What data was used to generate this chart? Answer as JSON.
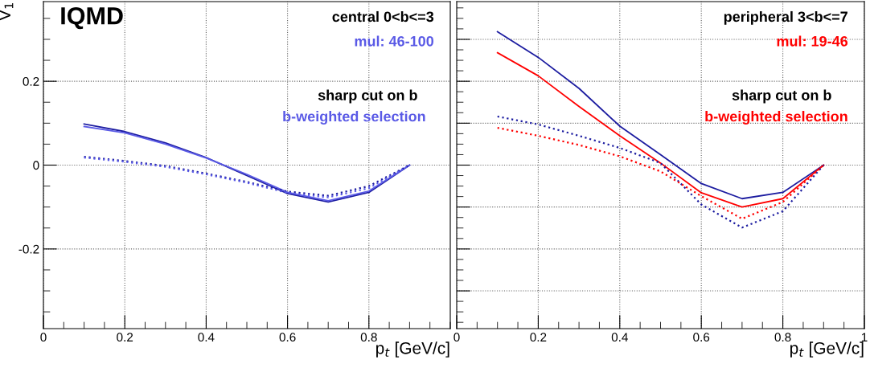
{
  "chart_data": [
    {
      "type": "line",
      "xlabel": "p$_{t}$ [GeV/c]",
      "ylabel": "V$_{1}$",
      "annotations": [
        "IQMD",
        "central 0<b<=3",
        "mul: 46-100",
        "sharp cut on b",
        "b-weighted selection"
      ],
      "x": [
        0.1,
        0.2,
        0.3,
        0.4,
        0.5,
        0.6,
        0.7,
        0.8,
        0.9
      ],
      "series": [
        {
          "color": "#1c1ca0",
          "line_style": "solid",
          "values": [
            0.098,
            0.08,
            0.053,
            0.018,
            -0.025,
            -0.068,
            -0.088,
            -0.065,
            0
          ]
        },
        {
          "color": "#5a5ae6",
          "line_style": "solid",
          "values": [
            0.092,
            0.077,
            0.05,
            0.017,
            -0.022,
            -0.065,
            -0.085,
            -0.062,
            0
          ]
        },
        {
          "color": "#1c1ca0",
          "line_style": "dotted",
          "values": [
            0.02,
            0.01,
            -0.002,
            -0.02,
            -0.04,
            -0.063,
            -0.073,
            -0.05,
            0
          ]
        },
        {
          "color": "#5a5ae6",
          "line_style": "dotted",
          "values": [
            0.018,
            0.008,
            -0.004,
            -0.022,
            -0.042,
            -0.066,
            -0.077,
            -0.055,
            0
          ]
        }
      ],
      "xlim": [
        0,
        1
      ],
      "ylim": [
        -0.39,
        0.39
      ],
      "xticks": [
        0,
        0.2,
        0.4,
        0.6,
        0.8
      ],
      "yticks": [
        -0.2,
        0,
        0.2
      ],
      "grid": true
    },
    {
      "type": "line",
      "xlabel": "p$_{t}$ [GeV/c]",
      "annotations": [
        "peripheral 3<b<=7",
        "mul: 19-46",
        "sharp cut on b",
        "b-weighted selection"
      ],
      "x": [
        0.1,
        0.2,
        0.3,
        0.4,
        0.5,
        0.6,
        0.7,
        0.8,
        0.9
      ],
      "series": [
        {
          "color": "#1c1ca0",
          "line_style": "solid",
          "values": [
            0.318,
            0.257,
            0.183,
            0.093,
            0.025,
            -0.044,
            -0.08,
            -0.065,
            0
          ]
        },
        {
          "color": "#ff0000",
          "line_style": "solid",
          "values": [
            0.268,
            0.213,
            0.14,
            0.07,
            0.005,
            -0.066,
            -0.1,
            -0.08,
            0
          ]
        },
        {
          "color": "#1c1ca0",
          "line_style": "dotted",
          "values": [
            0.116,
            0.097,
            0.07,
            0.041,
            0.005,
            -0.094,
            -0.149,
            -0.11,
            0
          ]
        },
        {
          "color": "#ff0000",
          "line_style": "dotted",
          "values": [
            0.089,
            0.07,
            0.048,
            0.021,
            -0.015,
            -0.074,
            -0.128,
            -0.088,
            0
          ]
        }
      ],
      "xlim": [
        0,
        1
      ],
      "ylim": [
        -0.39,
        0.39
      ],
      "xticks": [
        0,
        0.2,
        0.4,
        0.6,
        0.8,
        1
      ],
      "tick_labels": "x",
      "grid": true
    }
  ]
}
